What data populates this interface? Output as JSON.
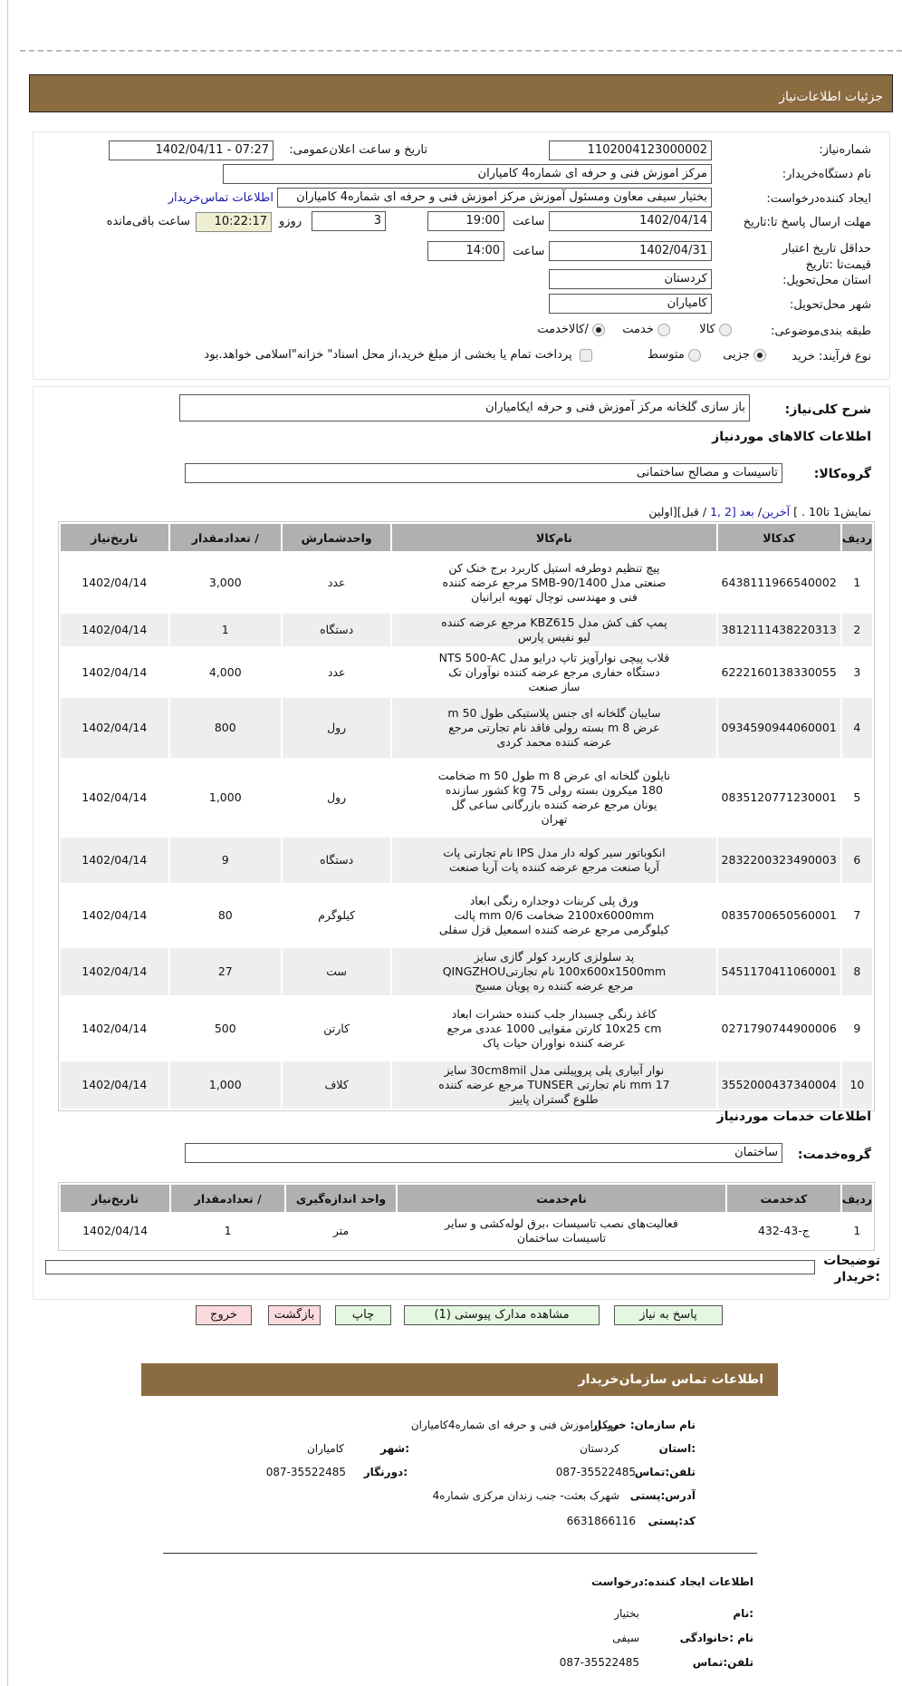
{
  "header": {
    "title": "جزئیات اطلاعات‌نیاز"
  },
  "details": {
    "need_number_label": "شماره‌نیاز:",
    "need_number": "1102004123000002",
    "announce_label": "تاریخ و ساعت اعلان‌عمومی:",
    "announce_value": "1402/04/11 - 07:27",
    "buyer_label": "نام دستگاه‌خریدار:",
    "buyer_value": "مرکز اموزش فنی و حرفه ای شماره4 کامیاران",
    "creator_label": "ایجاد کننده‌درخواست:",
    "creator_value": "بختیار سیفی  معاون ومسئول آموزش مرکز اموزش فنی و حرفه ای شماره4 کامیاران",
    "contact_link": "اطلاعات تماس‌خریدار",
    "deadline_label": "مهلت ارسال پاسخ تا:تاریخ",
    "deadline_date": "1402/04/14",
    "time_label": "ساعت",
    "deadline_time": "19:00",
    "days": "3",
    "days_label": "روزو",
    "remaining": "10:22:17",
    "remaining_label": "ساعت باقی‌مانده",
    "validity_label": "حداقل تاریخ اعتبار قیمت‌تا :تاریخ",
    "validity_date": "1402/04/31",
    "validity_time": "14:00",
    "province_label": "استان محل‌تحویل:",
    "province": "کردستان",
    "city_label": "شهر محل‌تحویل:",
    "city": "کامیاران",
    "category_label": "طبقه بندی‌موضوعی:",
    "category_options": [
      "کالا",
      "خدمت",
      "/کالاخدمت"
    ],
    "category_selected": "/کالاخدمت",
    "process_label": "نوع فرآیند: خرید",
    "process_options": [
      "جزیی",
      "متوسط"
    ],
    "process_selected": "جزیی",
    "treasury_text": "پرداخت تمام یا بخشی از مبلغ خرید،از محل اسناد\" خزانه\"اسلامی خواهد.بود"
  },
  "summary": {
    "label": "شرح کلی‌نیاز:",
    "value": "باز سازی گلخانه مرکز آموزش فنی و حرفه ایکامیاران"
  },
  "goods": {
    "title": "اطلاعات کالاهای موردنیاز",
    "group_label": "گروه‌کالا:",
    "group_value": "تاسیسات و مصالح ساختمانی",
    "pager": {
      "text": "نمایش1 تا10 . ]",
      "last": "آخرین",
      "next": "بعد",
      "pages": "[2 ,1",
      "rest": "/ قبل][اولین"
    },
    "columns": [
      "ردیف",
      "کدکالا",
      "نام‌کالا",
      "واحدشمارش",
      "/ تعدادمقدار",
      "تاریخ‌نیاز"
    ],
    "rows": [
      [
        "1",
        "6438111966540002",
        "پیچ تنظیم دوطرفه استیل کاربرد برج خنک کن صنعتی مدل SMB-90/1400 مرجع عرضه کننده فنی و مهندسی توچال تهویه ایرانیان",
        "عدد",
        "3,000",
        "1402/04/14"
      ],
      [
        "2",
        "3812111438220313",
        "پمپ کف کش مدل KBZ615 مرجع عرضه کننده لیو نفیس پارس",
        "دستگاه",
        "1",
        "1402/04/14"
      ],
      [
        "3",
        "6222160138330055",
        "قلاب پیچی نوارآویز تاپ درایو مدل NTS 500-AC دستگاه حفاری مرجع عرضه کننده نوآوران تک ساز صنعت",
        "عدد",
        "4,000",
        "1402/04/14"
      ],
      [
        "4",
        "0934590944060001",
        "سایبان گلخانه ای جنس پلاستیکی طول 50 m عرض 8 m بسته رولی فاقد نام تجارتی مرجع عرضه کننده محمد کردی",
        "رول",
        "800",
        "1402/04/14"
      ],
      [
        "5",
        "0835120771230001",
        "نایلون گلخانه ای عرض 8 m طول 50 m ضخامت 180 میکرون بسته رولی 75 kg کشور سازنده یونان مرجع عرضه کننده بازرگانی ساعی گل تهران",
        "رول",
        "1,000",
        "1402/04/14"
      ],
      [
        "6",
        "2832200323490003",
        "انکوباتور سیر کوله دار مدل IPS نام تجارتی پات آریا صنعت مرجع عرضه کننده پات آریا صنعت",
        "دستگاه",
        "9",
        "1402/04/14"
      ],
      [
        "7",
        "0835700650560001",
        "ورق پلی کربنات دوجداره رنگی ابعاد 2100x6000mm ضخامت 0/6 mm پالت کیلوگرمی مرجع عرضه کننده اسمعیل قزل سفلی",
        "کیلوگرم",
        "80",
        "1402/04/14"
      ],
      [
        "8",
        "5451170411060001",
        "پد سلولزی کاربرد کولر گازی سایز 100x600x1500mm نام تجارتیQINGZHOU مرجع عرضه کننده ره پویان مسیح",
        "ست",
        "27",
        "1402/04/14"
      ],
      [
        "9",
        "0271790744900006",
        "کاغذ رنگی چسبدار جلب کننده حشرات ابعاد 10x25 cm کارتن مقوایی 1000 عددی مرجع عرضه کننده نواوران حیات پاک",
        "کارتن",
        "500",
        "1402/04/14"
      ],
      [
        "10",
        "3552000437340004",
        "نوار آبیاری پلی پروپیلنی مدل 30cm8mil سایز 17 mm نام تجارتی TUNSER مرجع عرضه کننده طلوع گستران پاییز",
        "کلاف",
        "1,000",
        "1402/04/14"
      ]
    ]
  },
  "services": {
    "title": "اطلاعات خدمات موردنیاز",
    "group_label": "گروه‌خدمت:",
    "group_value": "ساختمان",
    "columns": [
      "ردیف",
      "کدخدمت",
      "نام‌خدمت",
      "واحد اندازه‌گیری",
      "/ تعدادمقدار",
      "تاریخ‌نیاز"
    ],
    "rows": [
      [
        "1",
        "ج-43-432",
        "فعالیت‌های نصب تاسیسات ،برق لوله‌کشی و سایر تاسیسات ساختمان",
        "متر",
        "1",
        "1402/04/14"
      ]
    ]
  },
  "buyer_notes_label": "توضیحات :خریدار",
  "buttons": {
    "reply": "پاسخ به نیاز",
    "attachments": "مشاهده مدارک پیوستی (1)",
    "print": "چاپ",
    "back": "بازگشت",
    "exit": "خروج"
  },
  "contact": {
    "title": "اطلاعات تماس سازمان‌خریدار",
    "org_label": "نام سازمان: خریدار",
    "org": "مرکز اموزش فنی و حرفه ای شماره4کامیاران",
    "province_label": ":استان",
    "province": "کردستان",
    "city_label": ":شهر",
    "city": "کامیاران",
    "phone_label": "تلفن:تماس",
    "phone": "087-35522485",
    "fax_label": ":دورنگار",
    "fax": "087-35522485",
    "address_label": "آدرس:پستی",
    "address": "شهرک بعثت- جنب زندان مرکزی شماره4",
    "postal_label": "کد:پستی",
    "postal": "6631866116",
    "creator_title": "اطلاعات ایجاد کننده:درخواست",
    "name_label": ":نام",
    "name": "بختیار",
    "family_label": "نام :خانوادگی",
    "family": "سیفی",
    "creator_phone_label": "تلفن:تماس",
    "creator_phone": "087-35522485"
  }
}
